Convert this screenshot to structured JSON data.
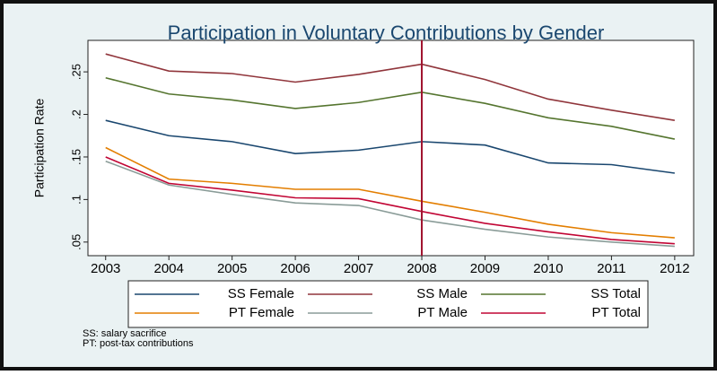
{
  "chart_data": {
    "type": "line",
    "title": "Participation in Voluntary Contributions by Gender",
    "y_label": "Participation Rate",
    "x": [
      2003,
      2004,
      2005,
      2006,
      2007,
      2008,
      2009,
      2010,
      2011,
      2012
    ],
    "series": [
      {
        "name": "SS Female",
        "color": "#1a476f",
        "values": [
          0.193,
          0.175,
          0.168,
          0.154,
          0.158,
          0.168,
          0.164,
          0.143,
          0.141,
          0.131
        ]
      },
      {
        "name": "SS Male",
        "color": "#90353b",
        "values": [
          0.271,
          0.251,
          0.248,
          0.238,
          0.247,
          0.259,
          0.241,
          0.218,
          0.205,
          0.193
        ]
      },
      {
        "name": "SS Total",
        "color": "#55752f",
        "values": [
          0.243,
          0.224,
          0.217,
          0.207,
          0.214,
          0.226,
          0.213,
          0.196,
          0.186,
          0.171
        ]
      },
      {
        "name": "PT Female",
        "color": "#e37e00",
        "values": [
          0.161,
          0.124,
          0.119,
          0.112,
          0.112,
          0.098,
          0.085,
          0.071,
          0.061,
          0.055
        ]
      },
      {
        "name": "PT Male",
        "color": "#8a9c98",
        "values": [
          0.145,
          0.117,
          0.106,
          0.096,
          0.093,
          0.076,
          0.065,
          0.056,
          0.05,
          0.045
        ]
      },
      {
        "name": "PT Total",
        "color": "#c10534",
        "values": [
          0.15,
          0.119,
          0.111,
          0.102,
          0.101,
          0.086,
          0.072,
          0.062,
          0.053,
          0.048
        ]
      }
    ],
    "xlim": [
      2002.72,
      2012.3
    ],
    "xticks": [
      2003,
      2004,
      2005,
      2006,
      2007,
      2008,
      2009,
      2010,
      2011,
      2012
    ],
    "ylim": [
      0.034,
      0.287
    ],
    "yticks": [
      {
        "value": 0.05,
        "label": ".05"
      },
      {
        "value": 0.1,
        "label": ".1"
      },
      {
        "value": 0.15,
        "label": ".15"
      },
      {
        "value": 0.2,
        "label": ".2"
      },
      {
        "value": 0.25,
        "label": ".25"
      }
    ],
    "vline": 2008,
    "vline_color": "#a0122e",
    "notes": [
      "SS: salary sacrifice",
      "PT: post-tax contributions"
    ]
  }
}
